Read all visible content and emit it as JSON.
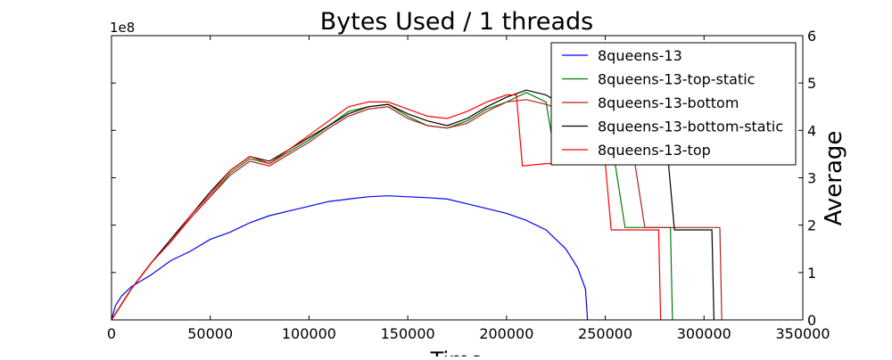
{
  "chart_data": {
    "type": "line",
    "title": "Bytes Used / 1 threads",
    "xlabel": "Time",
    "ylabel": "Average",
    "y_offset_label": "1e8",
    "xlim": [
      0,
      350000
    ],
    "ylim": [
      0,
      6
    ],
    "x_ticks": [
      0,
      50000,
      100000,
      150000,
      200000,
      250000,
      300000,
      350000
    ],
    "x_tick_labels": [
      "0",
      "50000",
      "100000",
      "150000",
      "200000",
      "250000",
      "300000",
      "350000"
    ],
    "y_ticks": [
      0,
      1,
      2,
      3,
      4,
      5,
      6
    ],
    "y_tick_labels": [
      "0",
      "1",
      "2",
      "3",
      "4",
      "5",
      "6"
    ],
    "y_axis_side": "right",
    "grid": false,
    "legend_position": "top-right",
    "series": [
      {
        "name": "8queens-13",
        "color": "#0000ff",
        "points": [
          [
            0,
            0
          ],
          [
            2000,
            0.3
          ],
          [
            5000,
            0.5
          ],
          [
            10000,
            0.7
          ],
          [
            20000,
            0.95
          ],
          [
            30000,
            1.25
          ],
          [
            40000,
            1.45
          ],
          [
            50000,
            1.7
          ],
          [
            60000,
            1.85
          ],
          [
            70000,
            2.05
          ],
          [
            80000,
            2.2
          ],
          [
            90000,
            2.3
          ],
          [
            100000,
            2.4
          ],
          [
            110000,
            2.5
          ],
          [
            120000,
            2.55
          ],
          [
            130000,
            2.6
          ],
          [
            140000,
            2.62
          ],
          [
            150000,
            2.6
          ],
          [
            160000,
            2.58
          ],
          [
            170000,
            2.55
          ],
          [
            180000,
            2.45
          ],
          [
            190000,
            2.35
          ],
          [
            200000,
            2.25
          ],
          [
            210000,
            2.1
          ],
          [
            220000,
            1.9
          ],
          [
            230000,
            1.5
          ],
          [
            236000,
            1.1
          ],
          [
            240000,
            0.65
          ],
          [
            241000,
            0
          ]
        ]
      },
      {
        "name": "8queens-13-top-static",
        "color": "#008000",
        "points": [
          [
            0,
            0
          ],
          [
            10000,
            0.65
          ],
          [
            20000,
            1.2
          ],
          [
            30000,
            1.65
          ],
          [
            40000,
            2.15
          ],
          [
            50000,
            2.6
          ],
          [
            60000,
            3.1
          ],
          [
            70000,
            3.4
          ],
          [
            80000,
            3.3
          ],
          [
            90000,
            3.55
          ],
          [
            100000,
            3.8
          ],
          [
            110000,
            4.1
          ],
          [
            120000,
            4.4
          ],
          [
            130000,
            4.5
          ],
          [
            140000,
            4.55
          ],
          [
            150000,
            4.3
          ],
          [
            160000,
            4.1
          ],
          [
            170000,
            4.05
          ],
          [
            180000,
            4.2
          ],
          [
            190000,
            4.45
          ],
          [
            200000,
            4.6
          ],
          [
            210000,
            4.8
          ],
          [
            220000,
            4.6
          ],
          [
            225000,
            3.35
          ],
          [
            235000,
            3.35
          ],
          [
            245000,
            3.35
          ],
          [
            255000,
            3.3
          ],
          [
            260000,
            1.95
          ],
          [
            275000,
            1.95
          ],
          [
            283000,
            1.95
          ],
          [
            284000,
            0
          ]
        ]
      },
      {
        "name": "8queens-13-bottom",
        "color": "#b22222",
        "points": [
          [
            0,
            0
          ],
          [
            10000,
            0.65
          ],
          [
            20000,
            1.2
          ],
          [
            30000,
            1.65
          ],
          [
            40000,
            2.15
          ],
          [
            50000,
            2.6
          ],
          [
            60000,
            3.05
          ],
          [
            70000,
            3.35
          ],
          [
            80000,
            3.25
          ],
          [
            90000,
            3.5
          ],
          [
            100000,
            3.75
          ],
          [
            110000,
            4.05
          ],
          [
            120000,
            4.3
          ],
          [
            130000,
            4.45
          ],
          [
            140000,
            4.5
          ],
          [
            150000,
            4.25
          ],
          [
            160000,
            4.1
          ],
          [
            170000,
            4.05
          ],
          [
            180000,
            4.15
          ],
          [
            190000,
            4.4
          ],
          [
            200000,
            4.6
          ],
          [
            210000,
            4.65
          ],
          [
            220000,
            4.55
          ],
          [
            230000,
            4.4
          ],
          [
            240000,
            3.3
          ],
          [
            255000,
            3.3
          ],
          [
            265000,
            3.3
          ],
          [
            270000,
            1.95
          ],
          [
            285000,
            1.95
          ],
          [
            295000,
            1.95
          ],
          [
            300000,
            1.95
          ],
          [
            305000,
            1.95
          ],
          [
            308000,
            1.95
          ],
          [
            309000,
            0
          ]
        ]
      },
      {
        "name": "8queens-13-bottom-static",
        "color": "#000000",
        "points": [
          [
            0,
            0
          ],
          [
            10000,
            0.65
          ],
          [
            20000,
            1.2
          ],
          [
            30000,
            1.7
          ],
          [
            40000,
            2.2
          ],
          [
            50000,
            2.7
          ],
          [
            60000,
            3.15
          ],
          [
            70000,
            3.45
          ],
          [
            80000,
            3.35
          ],
          [
            90000,
            3.6
          ],
          [
            100000,
            3.85
          ],
          [
            110000,
            4.1
          ],
          [
            120000,
            4.35
          ],
          [
            130000,
            4.5
          ],
          [
            140000,
            4.55
          ],
          [
            150000,
            4.35
          ],
          [
            160000,
            4.2
          ],
          [
            170000,
            4.1
          ],
          [
            180000,
            4.25
          ],
          [
            190000,
            4.5
          ],
          [
            200000,
            4.7
          ],
          [
            210000,
            4.85
          ],
          [
            220000,
            4.75
          ],
          [
            230000,
            4.5
          ],
          [
            240000,
            3.3
          ],
          [
            255000,
            3.3
          ],
          [
            270000,
            3.3
          ],
          [
            282000,
            3.3
          ],
          [
            285000,
            1.9
          ],
          [
            300000,
            1.9
          ],
          [
            304000,
            1.9
          ],
          [
            305000,
            0
          ]
        ]
      },
      {
        "name": "8queens-13-top",
        "color": "#ff0000",
        "points": [
          [
            0,
            0
          ],
          [
            10000,
            0.65
          ],
          [
            20000,
            1.2
          ],
          [
            30000,
            1.65
          ],
          [
            40000,
            2.2
          ],
          [
            50000,
            2.65
          ],
          [
            60000,
            3.15
          ],
          [
            70000,
            3.45
          ],
          [
            80000,
            3.3
          ],
          [
            90000,
            3.6
          ],
          [
            100000,
            3.9
          ],
          [
            110000,
            4.2
          ],
          [
            120000,
            4.5
          ],
          [
            130000,
            4.6
          ],
          [
            140000,
            4.6
          ],
          [
            150000,
            4.45
          ],
          [
            160000,
            4.3
          ],
          [
            170000,
            4.25
          ],
          [
            180000,
            4.4
          ],
          [
            190000,
            4.6
          ],
          [
            200000,
            4.75
          ],
          [
            205000,
            4.75
          ],
          [
            208000,
            3.25
          ],
          [
            220000,
            3.3
          ],
          [
            235000,
            3.3
          ],
          [
            245000,
            3.3
          ],
          [
            250000,
            3.3
          ],
          [
            253000,
            1.9
          ],
          [
            265000,
            1.9
          ],
          [
            275000,
            1.9
          ],
          [
            277000,
            1.9
          ],
          [
            278000,
            0
          ]
        ]
      }
    ]
  }
}
